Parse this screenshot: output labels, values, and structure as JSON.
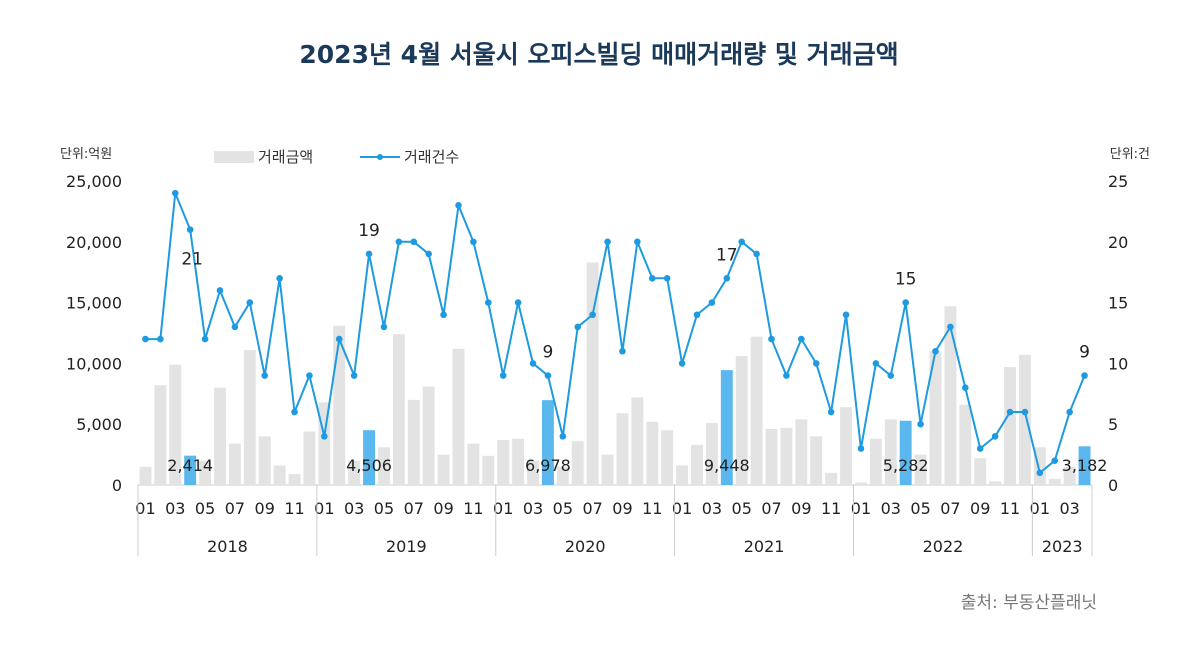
{
  "chart_data": {
    "type": "bar+line",
    "title": "2023년 4월 서울시 오피스빌딩 매매거래량 및 거래금액",
    "left_unit": "단위:억원",
    "right_unit": "단위:건",
    "source": "출처: 부동산플래닛",
    "left_ylim": [
      0,
      25000
    ],
    "right_ylim": [
      0,
      25
    ],
    "left_ticks": [
      "0",
      "5,000",
      "10,000",
      "15,000",
      "20,000",
      "25,000"
    ],
    "right_ticks": [
      "0",
      "5",
      "10",
      "15",
      "20",
      "25"
    ],
    "legend": {
      "bar": "거래금액",
      "line": "거래건수",
      "placement": "top"
    },
    "colors": {
      "bar": "#e3e3e3",
      "bar_highlight": "#5bb8ee",
      "line": "#1e9be0",
      "title": "#1b3a5a"
    },
    "years": [
      {
        "label": "2018",
        "months": 12
      },
      {
        "label": "2019",
        "months": 12
      },
      {
        "label": "2020",
        "months": 12
      },
      {
        "label": "2021",
        "months": 12
      },
      {
        "label": "2022",
        "months": 12
      },
      {
        "label": "2023",
        "months": 4
      }
    ],
    "month_tick_labels": [
      "01",
      "03",
      "05",
      "07",
      "09",
      "11"
    ],
    "amount": [
      1500,
      8200,
      9900,
      2414,
      2000,
      8000,
      3400,
      11100,
      4000,
      1600,
      900,
      4400,
      6800,
      13100,
      2000,
      4506,
      3100,
      12400,
      7000,
      8100,
      2500,
      11200,
      3400,
      2400,
      3700,
      3800,
      2000,
      6978,
      1500,
      3600,
      18300,
      2500,
      5900,
      7200,
      5200,
      4500,
      1600,
      3300,
      5100,
      9448,
      10600,
      12200,
      4600,
      4700,
      5400,
      4000,
      1000,
      6400,
      200,
      3800,
      5400,
      5282,
      2500,
      11000,
      14700,
      6600,
      2200,
      300,
      9700,
      10700,
      3100,
      500,
      1500,
      3182
    ],
    "count": [
      12,
      12,
      24,
      21,
      12,
      16,
      13,
      15,
      9,
      17,
      6,
      9,
      4,
      12,
      9,
      19,
      13,
      20,
      20,
      19,
      14,
      23,
      20,
      15,
      9,
      15,
      10,
      9,
      4,
      13,
      14,
      20,
      11,
      20,
      17,
      17,
      10,
      14,
      15,
      17,
      20,
      19,
      12,
      9,
      12,
      10,
      6,
      14,
      3,
      10,
      9,
      15,
      5,
      11,
      13,
      8,
      3,
      4,
      6,
      6,
      1,
      2,
      6,
      9
    ],
    "highlight_index": [
      3,
      15,
      27,
      39,
      51,
      63
    ],
    "amount_labels": [
      "2,414",
      "4,506",
      "6,978",
      "9,448",
      "5,282",
      "3,182"
    ],
    "count_labels": [
      "21",
      "19",
      "9",
      "17",
      "15",
      "9"
    ]
  }
}
